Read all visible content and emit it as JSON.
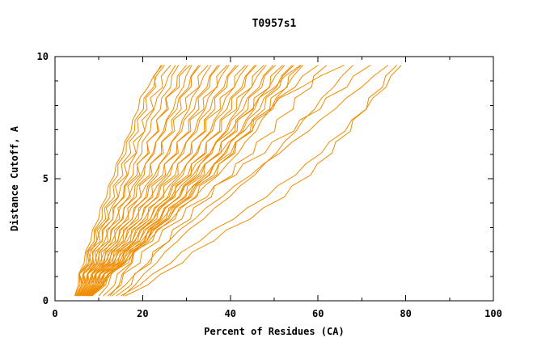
{
  "chart_data": {
    "type": "line",
    "title": "T0957s1",
    "xlabel": "Percent of Residues (CA)",
    "ylabel": "Distance Cutoff, A",
    "xlim": [
      0,
      100
    ],
    "ylim": [
      0,
      10
    ],
    "xticks": {
      "major": [
        0,
        20,
        40,
        60,
        80,
        100
      ],
      "minor_step": 10
    },
    "yticks": {
      "major": [
        0,
        5,
        10
      ],
      "minor_step": 1
    },
    "grid": false,
    "legend_position": "none",
    "line_color": "#f08c00",
    "frame_color": "#000000",
    "background": "#ffffff",
    "y_levels": [
      0.2,
      1,
      2.5,
      4,
      5.5,
      7,
      8.5,
      9.65
    ],
    "series_x": [
      [
        4.5,
        5.5,
        8.0,
        11.0,
        14.0,
        17.2,
        20.0,
        24.5
      ],
      [
        4.6,
        5.8,
        8.6,
        11.6,
        14.6,
        17.8,
        21.2,
        25.0
      ],
      [
        4.8,
        6.0,
        9.0,
        12.4,
        15.6,
        18.5,
        21.8,
        24.2
      ],
      [
        4.9,
        6.2,
        9.6,
        13.0,
        16.4,
        19.8,
        23.0,
        26.4
      ],
      [
        5.0,
        6.4,
        9.4,
        13.6,
        17.2,
        20.3,
        24.0,
        27.5
      ],
      [
        5.1,
        6.7,
        10.4,
        14.5,
        18.2,
        21.4,
        25.3,
        28.2
      ],
      [
        5.3,
        6.9,
        10.3,
        14.4,
        19.2,
        22.9,
        26.3,
        30.0
      ],
      [
        5.4,
        7.1,
        11.4,
        15.8,
        19.3,
        23.0,
        26.6,
        30.8
      ],
      [
        5.5,
        7.4,
        11.2,
        15.7,
        20.6,
        24.6,
        28.4,
        31.2
      ],
      [
        5.6,
        7.5,
        12.2,
        16.9,
        20.8,
        24.8,
        29.3,
        32.8
      ],
      [
        5.7,
        7.8,
        12.1,
        17.0,
        22.1,
        26.3,
        29.6,
        33.2
      ],
      [
        5.9,
        8.0,
        13.1,
        18.1,
        22.3,
        26.6,
        31.2,
        34.9
      ],
      [
        6.0,
        8.3,
        13.0,
        18.3,
        23.8,
        28.3,
        31.9,
        35.6
      ],
      [
        6.1,
        8.5,
        14.0,
        19.5,
        24.0,
        28.6,
        33.4,
        37.2
      ],
      [
        6.3,
        8.7,
        13.9,
        19.4,
        25.3,
        30.1,
        33.8,
        37.6
      ],
      [
        6.4,
        9.0,
        14.9,
        20.7,
        25.5,
        30.3,
        35.3,
        39.3
      ],
      [
        6.5,
        9.1,
        14.7,
        20.6,
        26.8,
        31.8,
        35.7,
        39.7
      ],
      [
        6.7,
        9.3,
        15.7,
        21.9,
        27.0,
        32.1,
        37.2,
        41.3
      ],
      [
        6.8,
        9.6,
        15.5,
        21.8,
        28.3,
        33.6,
        37.6,
        41.8
      ],
      [
        6.9,
        9.8,
        16.6,
        23.1,
        28.5,
        33.8,
        39.2,
        43.5
      ],
      [
        7.0,
        10.0,
        16.4,
        23.0,
        29.9,
        35.4,
        39.7,
        44.0
      ],
      [
        7.2,
        10.2,
        17.4,
        24.3,
        30.1,
        35.6,
        41.2,
        45.6
      ],
      [
        7.3,
        10.4,
        17.2,
        24.2,
        31.4,
        37.1,
        41.6,
        46.0
      ],
      [
        7.4,
        10.7,
        18.3,
        25.5,
        31.6,
        37.3,
        43.1,
        47.7
      ],
      [
        7.5,
        10.9,
        18.1,
        25.4,
        33.0,
        38.9,
        43.6,
        48.2
      ],
      [
        7.7,
        11.1,
        19.1,
        26.7,
        33.2,
        39.1,
        45.1,
        49.8
      ],
      [
        7.8,
        11.3,
        18.9,
        26.6,
        34.5,
        40.6,
        45.5,
        50.3
      ],
      [
        7.9,
        11.6,
        20.0,
        27.9,
        34.7,
        40.9,
        47.1,
        52.0
      ],
      [
        8.0,
        11.8,
        19.8,
        27.8,
        36.1,
        42.4,
        47.5,
        52.4
      ],
      [
        8.2,
        12.0,
        20.8,
        29.1,
        36.3,
        42.6,
        49.0,
        54.1
      ],
      [
        8.3,
        12.2,
        20.6,
        29.0,
        37.6,
        44.1,
        49.5,
        54.5
      ],
      [
        8.4,
        12.5,
        21.7,
        30.3,
        37.8,
        44.4,
        51.0,
        56.2
      ],
      [
        8.5,
        12.4,
        21.5,
        30.2,
        39.1,
        45.9,
        51.4,
        56.6
      ],
      [
        10.0,
        13.0,
        18.0,
        25.0,
        32.0,
        40.0,
        48.0,
        56.0
      ],
      [
        11.0,
        14.5,
        20.5,
        28.5,
        36.5,
        44.5,
        52.5,
        60.0
      ],
      [
        12.0,
        16.0,
        23.0,
        32.0,
        43.0,
        54.0,
        64.0,
        72.0
      ],
      [
        13.0,
        18.0,
        26.0,
        36.0,
        47.0,
        58.0,
        68.0,
        76.0
      ],
      [
        15.0,
        22.0,
        33.0,
        46.0,
        57.0,
        66.0,
        74.0,
        79.0
      ],
      [
        16.0,
        24.0,
        36.0,
        50.0,
        60.0,
        67.0,
        73.0,
        78.0
      ],
      [
        14.0,
        18.5,
        25.5,
        33.5,
        41.5,
        49.5,
        56.5,
        62.0
      ],
      [
        15.5,
        20.0,
        28.0,
        38.0,
        47.5,
        55.0,
        62.0,
        68.0
      ],
      [
        12.5,
        15.5,
        20.0,
        26.5,
        34.0,
        43.0,
        53.0,
        66.0
      ]
    ]
  }
}
